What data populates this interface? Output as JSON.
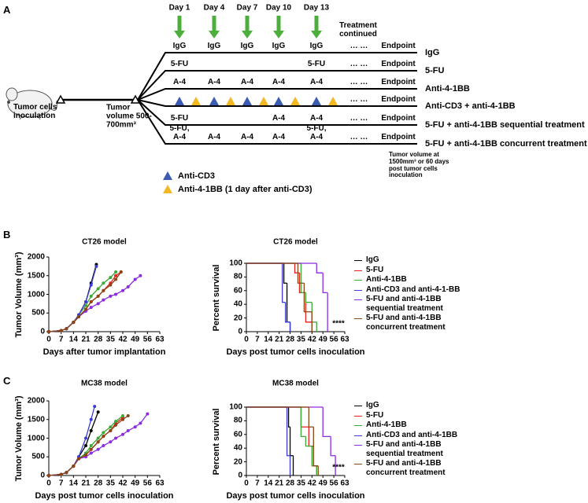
{
  "panel_labels": [
    "A",
    "B",
    "C"
  ],
  "diagram": {
    "days": [
      "Day 1",
      "Day 4",
      "Day 7",
      "Day 10",
      "Day 13"
    ],
    "treatment_note": "Treatment continued",
    "inoculation": "Tumor cells inoculation",
    "tumor_volume": "Tumor volume 500-700mm³",
    "endpoint_note": "Tumor volume at 1500mm³ or 60 days post tumor cells inoculation",
    "rows": [
      {
        "labels": [
          "IgG",
          "IgG",
          "IgG",
          "IgG",
          "IgG"
        ],
        "ellipsis": "… …",
        "endpoint": "Endpoint",
        "name": "IgG"
      },
      {
        "labels": [
          "5-FU",
          null,
          null,
          null,
          "5-FU"
        ],
        "ellipsis": "… …",
        "endpoint": "Endpoint",
        "name": "5-FU"
      },
      {
        "labels": [
          "A-4",
          "A-4",
          "A-4",
          "A-4",
          "A-4"
        ],
        "ellipsis": "… …",
        "endpoint": "Endpoint",
        "name": "Anti-4-1BB"
      },
      {
        "ellipsis": "… …",
        "endpoint": "Endpoint",
        "name": "Anti-CD3 + anti-4-1BB"
      },
      {
        "labels": [
          "5-FU",
          null,
          null,
          "A-4",
          "A-4"
        ],
        "ellipsis": "… …",
        "endpoint": "Endpoint",
        "name": "5-FU + anti-4-1BB sequential treatment"
      },
      {
        "labels": [
          "5-FU, A-4",
          "A-4",
          "A-4",
          "A-4",
          "5-FU, A-4"
        ],
        "ellipsis": "… …",
        "endpoint": "Endpoint",
        "name": "5-FU + anti-4-1BB concurrent treatment"
      }
    ],
    "legend": [
      {
        "name": "Anti-CD3",
        "color": "#3b5bb5"
      },
      {
        "name": "Anti-4-1BB (1 day after anti-CD3)",
        "color": "#f2b824"
      }
    ]
  },
  "chart_data": [
    {
      "type": "line",
      "title": "CT26 model",
      "xlabel": "Days after tumor implantation",
      "ylabel": "Tumor Volume (mm³)",
      "xlim": [
        0,
        63
      ],
      "ylim": [
        0,
        2000
      ],
      "xticks": [
        0,
        7,
        14,
        21,
        28,
        35,
        42,
        49,
        56,
        63
      ],
      "yticks": [
        0,
        500,
        1000,
        1500,
        2000
      ],
      "series": [
        {
          "color": "#000000",
          "x": [
            0,
            7,
            10,
            14,
            17,
            21,
            24,
            27
          ],
          "values": [
            0,
            30,
            80,
            250,
            450,
            800,
            1300,
            1800
          ]
        },
        {
          "color": "#e8201f",
          "x": [
            0,
            7,
            10,
            14,
            17,
            21,
            24,
            28,
            31,
            35,
            38,
            41
          ],
          "values": [
            0,
            30,
            80,
            250,
            400,
            600,
            800,
            950,
            1100,
            1300,
            1500,
            1600
          ]
        },
        {
          "color": "#3aa935",
          "x": [
            0,
            7,
            10,
            14,
            17,
            21,
            24,
            28,
            31,
            35,
            38
          ],
          "values": [
            0,
            30,
            80,
            250,
            450,
            700,
            950,
            1150,
            1300,
            1450,
            1600
          ]
        },
        {
          "color": "#3b3bd6",
          "x": [
            0,
            7,
            10,
            14,
            17,
            21,
            24,
            27
          ],
          "values": [
            0,
            30,
            80,
            250,
            450,
            800,
            1250,
            1750
          ]
        },
        {
          "color": "#8b2be2",
          "x": [
            0,
            7,
            10,
            14,
            17,
            21,
            24,
            28,
            31,
            35,
            38,
            42,
            45,
            49,
            52
          ],
          "values": [
            0,
            30,
            80,
            250,
            400,
            550,
            650,
            750,
            850,
            950,
            1000,
            1100,
            1200,
            1400,
            1500
          ]
        },
        {
          "color": "#8b4513",
          "x": [
            0,
            7,
            10,
            14,
            17,
            21,
            24,
            28,
            31,
            35,
            38,
            41
          ],
          "values": [
            0,
            30,
            80,
            250,
            400,
            600,
            800,
            950,
            1100,
            1250,
            1400,
            1600
          ]
        }
      ]
    },
    {
      "type": "step",
      "title": "CT26 model",
      "xlabel": "Days post tumor cells inoculation",
      "ylabel": "Percent survival",
      "xlim": [
        0,
        63
      ],
      "ylim": [
        0,
        100
      ],
      "xticks": [
        0,
        7,
        14,
        21,
        28,
        35,
        42,
        49,
        56,
        63
      ],
      "yticks": [
        0,
        20,
        40,
        60,
        80,
        100
      ],
      "annotation": "****",
      "series": [
        {
          "name": "IgG",
          "color": "#000000",
          "x": [
            0,
            24,
            26,
            28
          ],
          "values": [
            100,
            71,
            14,
            0
          ]
        },
        {
          "name": "5-FU",
          "color": "#e8201f",
          "x": [
            0,
            31,
            34,
            38,
            42
          ],
          "values": [
            100,
            86,
            57,
            14,
            0
          ]
        },
        {
          "name": "Anti-4-1BB",
          "color": "#3aa935",
          "x": [
            0,
            35,
            38,
            42,
            45
          ],
          "values": [
            100,
            57,
            43,
            14,
            0
          ]
        },
        {
          "name": "Anti-CD3 and anti-4-1-BB",
          "color": "#3b3bd6",
          "x": [
            0,
            23,
            25,
            28
          ],
          "values": [
            100,
            43,
            14,
            0
          ]
        },
        {
          "name": "5-FU and anti-4-1BB sequential treatment",
          "color": "#8b2be2",
          "x": [
            0,
            45,
            49,
            52
          ],
          "values": [
            100,
            86,
            57,
            0
          ]
        },
        {
          "name": "5-FU and anti-4-1BB concurrent treatment",
          "color": "#8b4513",
          "x": [
            0,
            33,
            37,
            42
          ],
          "values": [
            100,
            71,
            29,
            0
          ]
        }
      ]
    },
    {
      "type": "line",
      "title": "MC38 model",
      "xlabel": "Days post tumor cells inoculation",
      "ylabel": "Tumor Volume (mm³)",
      "xlim": [
        0,
        63
      ],
      "ylim": [
        0,
        2000
      ],
      "xticks": [
        0,
        7,
        14,
        21,
        28,
        35,
        42,
        49,
        56,
        63
      ],
      "yticks": [
        0,
        500,
        1000,
        1500,
        2000
      ],
      "series": [
        {
          "color": "#000000",
          "x": [
            0,
            7,
            10,
            14,
            17,
            21,
            24,
            28
          ],
          "values": [
            0,
            30,
            80,
            250,
            500,
            800,
            1200,
            1700
          ]
        },
        {
          "color": "#e8201f",
          "x": [
            0,
            7,
            10,
            14,
            17,
            21,
            24,
            28,
            31,
            35,
            38,
            42
          ],
          "values": [
            0,
            30,
            80,
            250,
            450,
            550,
            700,
            900,
            1050,
            1200,
            1400,
            1550
          ]
        },
        {
          "color": "#3aa935",
          "x": [
            0,
            7,
            10,
            14,
            17,
            21,
            24,
            28,
            31,
            35,
            38,
            42
          ],
          "values": [
            0,
            30,
            80,
            250,
            450,
            600,
            800,
            1000,
            1150,
            1300,
            1450,
            1600
          ]
        },
        {
          "color": "#3b3bd6",
          "x": [
            0,
            7,
            10,
            14,
            17,
            21,
            24,
            26
          ],
          "values": [
            0,
            30,
            80,
            250,
            500,
            1000,
            1500,
            1850
          ]
        },
        {
          "color": "#8b2be2",
          "x": [
            0,
            7,
            10,
            14,
            17,
            21,
            24,
            28,
            31,
            35,
            38,
            42,
            45,
            49,
            52,
            56
          ],
          "values": [
            0,
            30,
            80,
            250,
            450,
            500,
            600,
            700,
            800,
            900,
            1000,
            1100,
            1200,
            1300,
            1400,
            1650
          ]
        },
        {
          "color": "#8b4513",
          "x": [
            0,
            7,
            10,
            14,
            17,
            21,
            24,
            28,
            31,
            35,
            38,
            42,
            45
          ],
          "values": [
            0,
            30,
            80,
            250,
            450,
            550,
            700,
            900,
            1050,
            1200,
            1350,
            1500,
            1600
          ]
        }
      ]
    },
    {
      "type": "step",
      "title": "MC38 model",
      "xlabel": "Days post tumor cells inoculation",
      "ylabel": "Percent survival",
      "xlim": [
        0,
        63
      ],
      "ylim": [
        0,
        100
      ],
      "xticks": [
        0,
        7,
        14,
        21,
        28,
        35,
        42,
        49,
        56,
        63
      ],
      "yticks": [
        0,
        20,
        40,
        60,
        80,
        100
      ],
      "annotation": "****",
      "series": [
        {
          "name": "IgG",
          "color": "#000000",
          "x": [
            0,
            27,
            28,
            30
          ],
          "values": [
            100,
            71,
            29,
            0
          ]
        },
        {
          "name": "5-FU",
          "color": "#e8201f",
          "x": [
            0,
            35,
            40,
            43,
            45
          ],
          "values": [
            100,
            71,
            43,
            14,
            0
          ]
        },
        {
          "name": "Anti-4-1BB",
          "color": "#3aa935",
          "x": [
            0,
            35,
            38,
            42,
            45
          ],
          "values": [
            100,
            57,
            43,
            14,
            0
          ]
        },
        {
          "name": "Anti-CD3 and anti-4-1BB",
          "color": "#3b3bd6",
          "x": [
            0,
            26,
            28
          ],
          "values": [
            100,
            29,
            0
          ]
        },
        {
          "name": "5-FU and anti-4-1BB sequential treatment",
          "color": "#8b2be2",
          "x": [
            0,
            49,
            54,
            57
          ],
          "values": [
            100,
            57,
            29,
            0
          ]
        },
        {
          "name": "5-FU and anti-4-1BB concurrent treatment",
          "color": "#8b4513",
          "x": [
            0,
            40,
            43,
            46
          ],
          "values": [
            100,
            71,
            14,
            0
          ]
        }
      ]
    }
  ]
}
